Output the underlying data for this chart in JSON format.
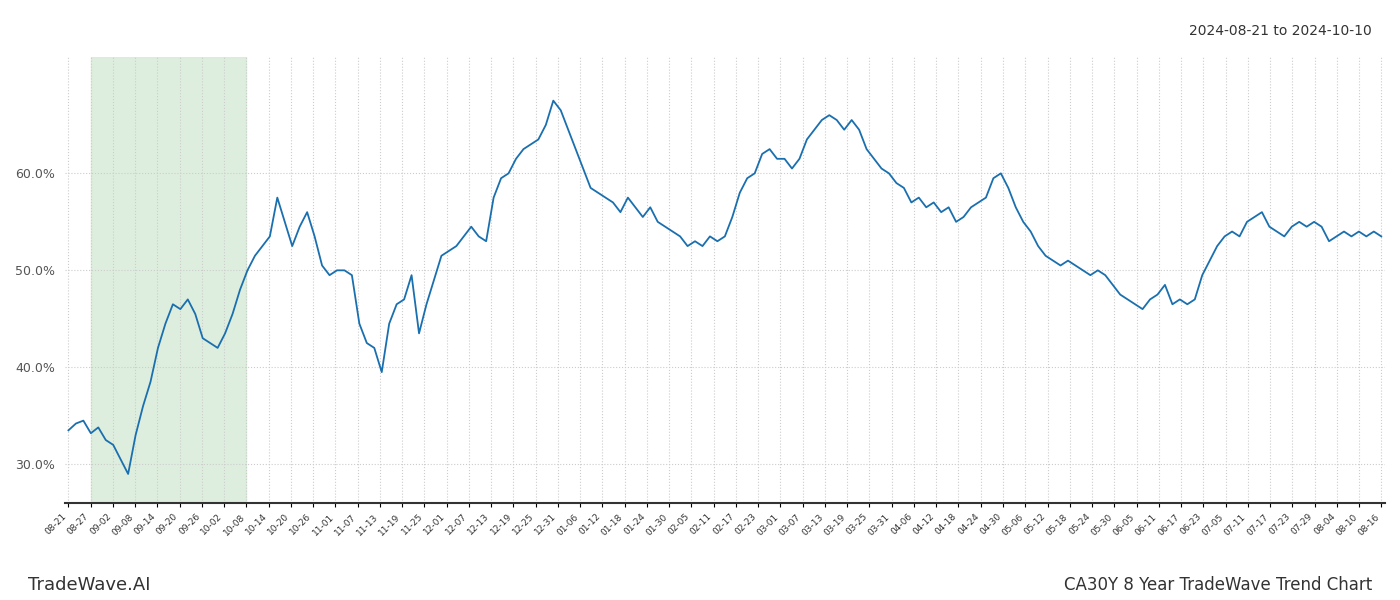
{
  "title_top_right": "2024-08-21 to 2024-10-10",
  "title_bottom": "CA30Y 8 Year TradeWave Trend Chart",
  "bottom_left_text": "TradeWave.AI",
  "line_color": "#1a6faf",
  "line_width": 1.3,
  "shade_color": "#d6ead6",
  "shade_alpha": 0.8,
  "background_color": "#ffffff",
  "grid_color": "#cccccc",
  "ylim": [
    26,
    72
  ],
  "yticks": [
    30,
    40,
    50,
    60
  ],
  "x_labels": [
    "08-21",
    "08-27",
    "09-02",
    "09-08",
    "09-14",
    "09-20",
    "09-26",
    "10-02",
    "10-08",
    "10-14",
    "10-20",
    "10-26",
    "11-01",
    "11-07",
    "11-13",
    "11-19",
    "11-25",
    "12-01",
    "12-07",
    "12-13",
    "12-19",
    "12-25",
    "12-31",
    "01-06",
    "01-12",
    "01-18",
    "01-24",
    "01-30",
    "02-05",
    "02-11",
    "02-17",
    "02-23",
    "03-01",
    "03-07",
    "03-13",
    "03-19",
    "03-25",
    "03-31",
    "04-06",
    "04-12",
    "04-18",
    "04-24",
    "04-30",
    "05-06",
    "05-12",
    "05-18",
    "05-24",
    "05-30",
    "06-05",
    "06-11",
    "06-17",
    "06-23",
    "07-05",
    "07-11",
    "07-17",
    "07-23",
    "07-29",
    "08-04",
    "08-10",
    "08-16"
  ],
  "shade_start_label": "08-27",
  "shade_end_label": "10-08",
  "values": [
    33.5,
    34.2,
    34.5,
    33.2,
    33.8,
    32.5,
    32.0,
    30.5,
    29.0,
    33.0,
    36.0,
    38.5,
    42.0,
    44.5,
    46.5,
    46.0,
    47.0,
    45.5,
    43.0,
    42.5,
    42.0,
    43.5,
    45.5,
    48.0,
    50.0,
    51.5,
    52.5,
    53.5,
    57.5,
    55.0,
    52.5,
    54.5,
    56.0,
    53.5,
    50.5,
    49.5,
    50.0,
    50.0,
    49.5,
    44.5,
    42.5,
    42.0,
    39.5,
    44.5,
    46.5,
    47.0,
    49.5,
    43.5,
    46.5,
    49.0,
    51.5,
    52.0,
    52.5,
    53.5,
    54.5,
    53.5,
    53.0,
    57.5,
    59.5,
    60.0,
    61.5,
    62.5,
    63.0,
    63.5,
    65.0,
    67.5,
    66.5,
    64.5,
    62.5,
    60.5,
    58.5,
    58.0,
    57.5,
    57.0,
    56.0,
    57.5,
    56.5,
    55.5,
    56.5,
    55.0,
    54.5,
    54.0,
    53.5,
    52.5,
    53.0,
    52.5,
    53.5,
    53.0,
    53.5,
    55.5,
    58.0,
    59.5,
    60.0,
    62.0,
    62.5,
    61.5,
    61.5,
    60.5,
    61.5,
    63.5,
    64.5,
    65.5,
    66.0,
    65.5,
    64.5,
    65.5,
    64.5,
    62.5,
    61.5,
    60.5,
    60.0,
    59.0,
    58.5,
    57.0,
    57.5,
    56.5,
    57.0,
    56.0,
    56.5,
    55.0,
    55.5,
    56.5,
    57.0,
    57.5,
    59.5,
    60.0,
    58.5,
    56.5,
    55.0,
    54.0,
    52.5,
    51.5,
    51.0,
    50.5,
    51.0,
    50.5,
    50.0,
    49.5,
    50.0,
    49.5,
    48.5,
    47.5,
    47.0,
    46.5,
    46.0,
    47.0,
    47.5,
    48.5,
    46.5,
    47.0,
    46.5,
    47.0,
    49.5,
    51.0,
    52.5,
    53.5,
    54.0,
    53.5,
    55.0,
    55.5,
    56.0,
    54.5,
    54.0,
    53.5,
    54.5,
    55.0,
    54.5,
    55.0,
    54.5,
    53.0,
    53.5,
    54.0,
    53.5,
    54.0,
    53.5,
    54.0,
    53.5
  ]
}
